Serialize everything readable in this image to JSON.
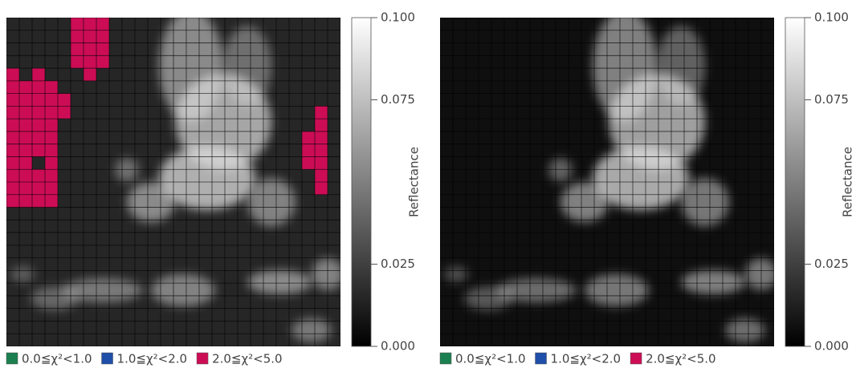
{
  "chart_data": [
    {
      "type": "cellmap",
      "grid": {
        "rows": 26,
        "cols": 26
      },
      "colorbar_label": "Reflectance",
      "ylim": [
        0,
        0.1
      ],
      "yticks": [
        {
          "value": 0,
          "label": "0.000"
        },
        {
          "value": 0.025,
          "label": "0.025"
        },
        {
          "value": 0.075,
          "label": "0.075"
        },
        {
          "value": 0.1,
          "label": "0.100"
        }
      ],
      "legend": [
        {
          "label": "0.0≦χ²<1.0",
          "color": "#1b7f4f"
        },
        {
          "label": "1.0≦χ²<2.0",
          "color": "#1f4fa8"
        },
        {
          "label": "2.0≦χ²<5.0",
          "color": "#cc0d55"
        }
      ],
      "cells": [
        [
          0,
          5,
          2
        ],
        [
          0,
          6,
          2
        ],
        [
          0,
          7,
          2
        ],
        [
          1,
          5,
          2
        ],
        [
          1,
          6,
          2
        ],
        [
          1,
          7,
          2
        ],
        [
          2,
          5,
          2
        ],
        [
          2,
          6,
          2
        ],
        [
          2,
          7,
          2
        ],
        [
          3,
          5,
          2
        ],
        [
          3,
          6,
          2
        ],
        [
          3,
          7,
          2
        ],
        [
          4,
          6,
          2
        ],
        [
          4,
          0,
          2
        ],
        [
          4,
          2,
          2
        ],
        [
          5,
          0,
          2
        ],
        [
          5,
          1,
          2
        ],
        [
          5,
          2,
          2
        ],
        [
          5,
          3,
          2
        ],
        [
          6,
          0,
          2
        ],
        [
          6,
          1,
          2
        ],
        [
          6,
          2,
          2
        ],
        [
          6,
          3,
          2
        ],
        [
          6,
          4,
          2
        ],
        [
          7,
          0,
          2
        ],
        [
          7,
          1,
          2
        ],
        [
          7,
          2,
          2
        ],
        [
          7,
          3,
          2
        ],
        [
          7,
          4,
          2
        ],
        [
          8,
          0,
          2
        ],
        [
          8,
          1,
          2
        ],
        [
          8,
          2,
          2
        ],
        [
          8,
          3,
          2
        ],
        [
          9,
          0,
          2
        ],
        [
          9,
          1,
          2
        ],
        [
          9,
          2,
          2
        ],
        [
          9,
          3,
          2
        ],
        [
          10,
          0,
          2
        ],
        [
          10,
          1,
          2
        ],
        [
          10,
          2,
          2
        ],
        [
          10,
          3,
          2
        ],
        [
          11,
          0,
          2
        ],
        [
          11,
          1,
          2
        ],
        [
          11,
          3,
          2
        ],
        [
          12,
          0,
          2
        ],
        [
          12,
          1,
          2
        ],
        [
          12,
          2,
          2
        ],
        [
          12,
          3,
          2
        ],
        [
          13,
          0,
          2
        ],
        [
          13,
          1,
          2
        ],
        [
          13,
          2,
          2
        ],
        [
          13,
          3,
          2
        ],
        [
          14,
          0,
          2
        ],
        [
          14,
          1,
          2
        ],
        [
          14,
          2,
          2
        ],
        [
          14,
          3,
          2
        ],
        [
          7,
          24,
          2
        ],
        [
          8,
          24,
          2
        ],
        [
          9,
          23,
          2
        ],
        [
          9,
          24,
          2
        ],
        [
          10,
          23,
          2
        ],
        [
          10,
          24,
          2
        ],
        [
          11,
          23,
          2
        ],
        [
          11,
          24,
          2
        ],
        [
          12,
          24,
          2
        ],
        [
          13,
          24,
          2
        ]
      ]
    },
    {
      "type": "cellmap",
      "grid": {
        "rows": 26,
        "cols": 26
      },
      "colorbar_label": "Reflectance",
      "ylim": [
        0,
        0.1
      ],
      "yticks": [
        {
          "value": 0,
          "label": "0.000"
        },
        {
          "value": 0.025,
          "label": "0.025"
        },
        {
          "value": 0.075,
          "label": "0.075"
        },
        {
          "value": 0.1,
          "label": "0.100"
        }
      ],
      "legend": [
        {
          "label": "0.0≦χ²<1.0",
          "color": "#1b7f4f"
        },
        {
          "label": "1.0≦χ²<2.0",
          "color": "#1f4fa8"
        },
        {
          "label": "2.0≦χ²<5.0",
          "color": "#cc0d55"
        }
      ],
      "cells": []
    }
  ]
}
